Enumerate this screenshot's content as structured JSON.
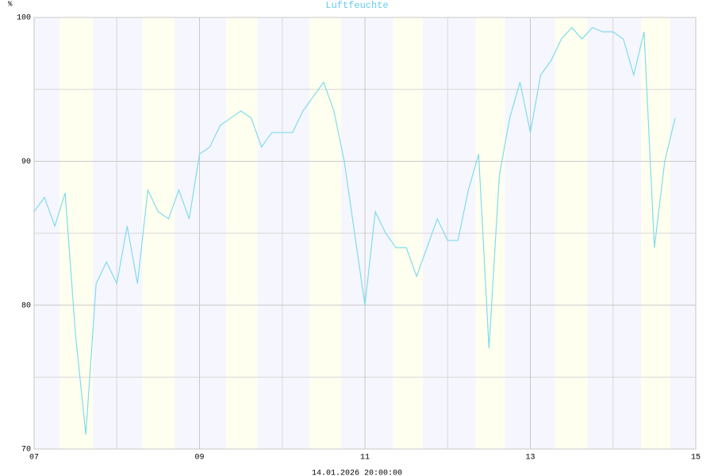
{
  "chart_data": {
    "type": "line",
    "title": "Luftfeuchte",
    "y_unit": "%",
    "x_label": "14.01.2026 20:00:00",
    "x": [
      7.0,
      7.125,
      7.25,
      7.375,
      7.5,
      7.625,
      7.75,
      7.875,
      8.0,
      8.125,
      8.25,
      8.375,
      8.5,
      8.625,
      8.75,
      8.875,
      9.0,
      9.125,
      9.25,
      9.375,
      9.5,
      9.625,
      9.75,
      9.875,
      10.0,
      10.125,
      10.25,
      10.375,
      10.5,
      10.625,
      10.75,
      10.875,
      11.0,
      11.125,
      11.25,
      11.375,
      11.5,
      11.625,
      11.75,
      11.875,
      12.0,
      12.125,
      12.25,
      12.375,
      12.5,
      12.625,
      12.75,
      12.875,
      13.0,
      13.125,
      13.25,
      13.375,
      13.5,
      13.625,
      13.75,
      13.875,
      14.0,
      14.125,
      14.25,
      14.375,
      14.5,
      14.625,
      14.75
    ],
    "series": [
      {
        "name": "Luftfeuchte",
        "color": "#7fdcec",
        "values": [
          86.5,
          87.5,
          85.5,
          87.8,
          78,
          71,
          81.5,
          83,
          81.5,
          85.5,
          81.5,
          88,
          86.5,
          86,
          88,
          86,
          90.5,
          91,
          92.5,
          93,
          93.5,
          93,
          91,
          92,
          92,
          92,
          93.5,
          94.5,
          95.5,
          93.5,
          90,
          85,
          80,
          86.5,
          85,
          84,
          84,
          82,
          84,
          86,
          84.5,
          84.5,
          88,
          90.5,
          77,
          89,
          93,
          95.5,
          92,
          96,
          97,
          98.5,
          99.3,
          98.5,
          99.3,
          99,
          99,
          98.5,
          96,
          99,
          84,
          90,
          93
        ]
      }
    ],
    "xlim": [
      7,
      15
    ],
    "ylim": [
      70,
      100
    ],
    "xticks": [
      {
        "value": 7,
        "label": "07"
      },
      {
        "value": 9,
        "label": "09"
      },
      {
        "value": 11,
        "label": "11"
      },
      {
        "value": 13,
        "label": "13"
      },
      {
        "value": 15,
        "label": "15"
      }
    ],
    "yticks": [
      70,
      80,
      90,
      100
    ],
    "x_minor_grid": [
      8,
      10,
      12,
      14
    ],
    "y_minor_grid": [
      75,
      85,
      95
    ],
    "grid": true,
    "night_color": "#f6f6fe",
    "day_color": "#fffff0",
    "day_bands": [
      [
        7.31,
        7.71
      ],
      [
        8.31,
        8.7
      ],
      [
        9.32,
        9.7
      ],
      [
        10.33,
        10.71
      ],
      [
        11.34,
        11.7
      ],
      [
        12.34,
        12.69
      ],
      [
        13.3,
        13.69
      ],
      [
        14.34,
        14.69
      ]
    ]
  }
}
